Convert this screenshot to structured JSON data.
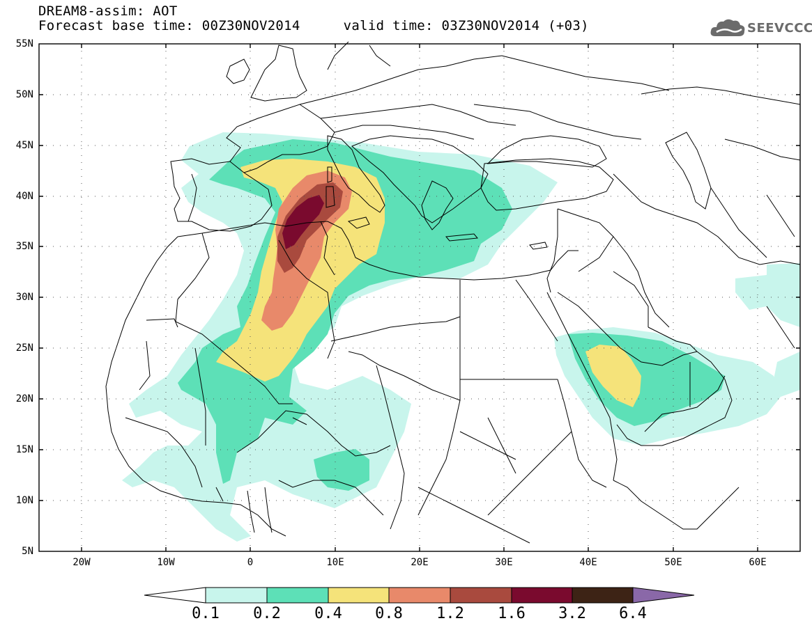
{
  "title": {
    "line1": "DREAM8-assim: AOT",
    "base_time": "Forecast base time: 00Z30NOV2014",
    "valid_time": "valid time: 03Z30NOV2014 (+03)"
  },
  "logo": {
    "text": "SEEVCCC",
    "icon": "cloud-logo-icon"
  },
  "map": {
    "lat_labels": [
      "55N",
      "50N",
      "45N",
      "40N",
      "35N",
      "30N",
      "25N",
      "20N",
      "15N",
      "10N",
      "5N"
    ],
    "lon_labels": [
      "20W",
      "10W",
      "0",
      "10E",
      "20E",
      "30E",
      "40E",
      "50E",
      "60E"
    ],
    "lat_range": [
      5,
      55
    ],
    "lon_range": [
      -25,
      65
    ]
  },
  "colorbar": {
    "labels": [
      "0.1",
      "0.2",
      "0.4",
      "0.8",
      "1.2",
      "1.6",
      "3.2",
      "6.4"
    ],
    "colors": [
      "#ffffff",
      "#c8f5ec",
      "#5de0b7",
      "#f5e37a",
      "#e8896a",
      "#a94a3e",
      "#7a0a2e",
      "#3d2315",
      "#8a68a8"
    ]
  },
  "layer_colors": {
    "c1": "#c8f5ec",
    "c2": "#5de0b7",
    "c3": "#f5e37a",
    "c4": "#e8896a",
    "c5": "#a94a3e",
    "c6": "#7a0a2e"
  }
}
